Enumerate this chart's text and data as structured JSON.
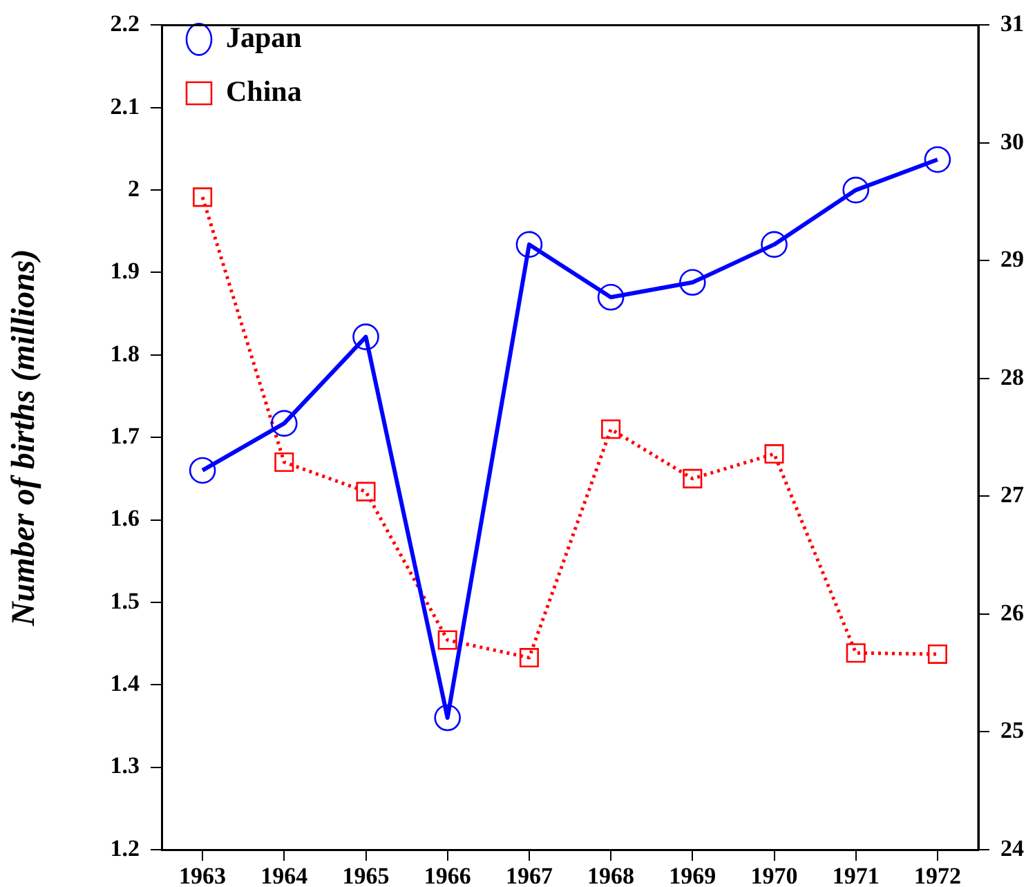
{
  "chart_data": {
    "type": "line",
    "ylabel": "Number of births (millions)",
    "categories": [
      "1963",
      "1964",
      "1965",
      "1966",
      "1967",
      "1968",
      "1969",
      "1970",
      "1971",
      "1972"
    ],
    "series": [
      {
        "name": "Japan",
        "color": "#0000ff",
        "marker": "circle",
        "line_style": "solid",
        "values": [
          1.66,
          1.717,
          1.822,
          1.36,
          1.934,
          1.87,
          1.888,
          1.934,
          2.0,
          2.037
        ]
      },
      {
        "name": "China",
        "color": "#ff0000",
        "marker": "square",
        "line_style": "dotted",
        "axis": "y2",
        "values": [
          29.54,
          27.29,
          27.04,
          25.78,
          25.63,
          27.57,
          27.15,
          27.36,
          25.67,
          25.66
        ]
      }
    ],
    "ylim": [
      1.2,
      2.2
    ],
    "yticks": [
      1.2,
      1.3,
      1.4,
      1.5,
      1.6,
      1.7,
      1.8,
      1.9,
      2,
      2.1,
      2.2
    ],
    "y2lim": [
      24,
      31
    ],
    "y2ticks": [
      24,
      25,
      26,
      27,
      28,
      29,
      30,
      31
    ],
    "grid": false,
    "legend": "top left"
  }
}
